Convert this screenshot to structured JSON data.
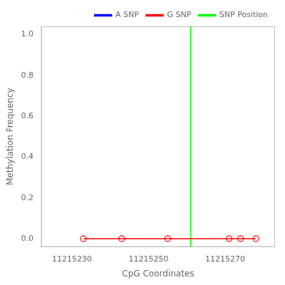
{
  "chart_data": {
    "type": "line",
    "xlabel": "CpG Coordinates",
    "ylabel": "Methylation Frequency",
    "x": [
      11215233,
      11215243,
      11215255,
      11215271,
      11215274,
      11215278
    ],
    "series": [
      {
        "name": "A SNP",
        "color": "blue",
        "values": [
          null,
          null,
          null,
          null,
          null,
          null
        ]
      },
      {
        "name": "G SNP",
        "color": "red",
        "marker": "circle",
        "values": [
          0.0,
          0.0,
          0.0,
          0.0,
          0.0,
          0.0
        ]
      },
      {
        "name": "SNP Position",
        "color": "lime",
        "type": "vline",
        "x": 11215261
      }
    ],
    "xlim": [
      11215222,
      11215283
    ],
    "xticks": [
      11215230,
      11215250,
      11215270
    ],
    "ylim": [
      -0.04,
      1.04
    ],
    "yticks": [
      {
        "value": 0,
        "label": "0.0"
      },
      0.2,
      0.4,
      0.6,
      0.8,
      {
        "value": 1,
        "label": "1.0"
      }
    ],
    "grid": false,
    "legend": "upper right"
  }
}
